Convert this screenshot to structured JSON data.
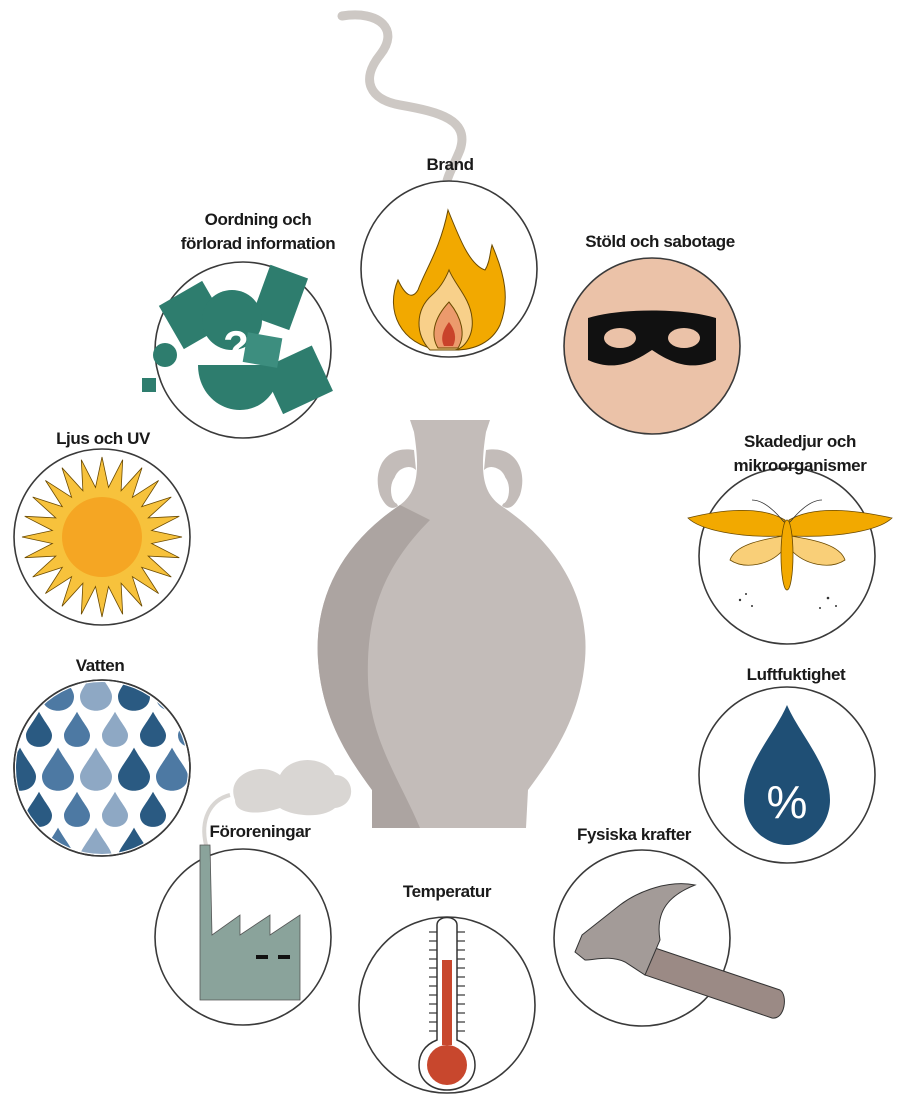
{
  "nodes": [
    {
      "label_lines": [
        "Brand"
      ]
    },
    {
      "label_lines": [
        "Stöld och sabotage"
      ]
    },
    {
      "label_lines": [
        "Oordning och",
        "förlorad information"
      ]
    },
    {
      "label_lines": [
        "Ljus och UV"
      ]
    },
    {
      "label_lines": [
        "Skadedjur och",
        "mikroorganismer"
      ]
    },
    {
      "label_lines": [
        "Vatten"
      ]
    },
    {
      "label_lines": [
        "Luftfuktighet"
      ],
      "icon_text": "%"
    },
    {
      "label_lines": [
        "Föroreningar"
      ]
    },
    {
      "label_lines": [
        "Temperatur"
      ]
    },
    {
      "label_lines": [
        "Fysiska krafter"
      ]
    }
  ]
}
